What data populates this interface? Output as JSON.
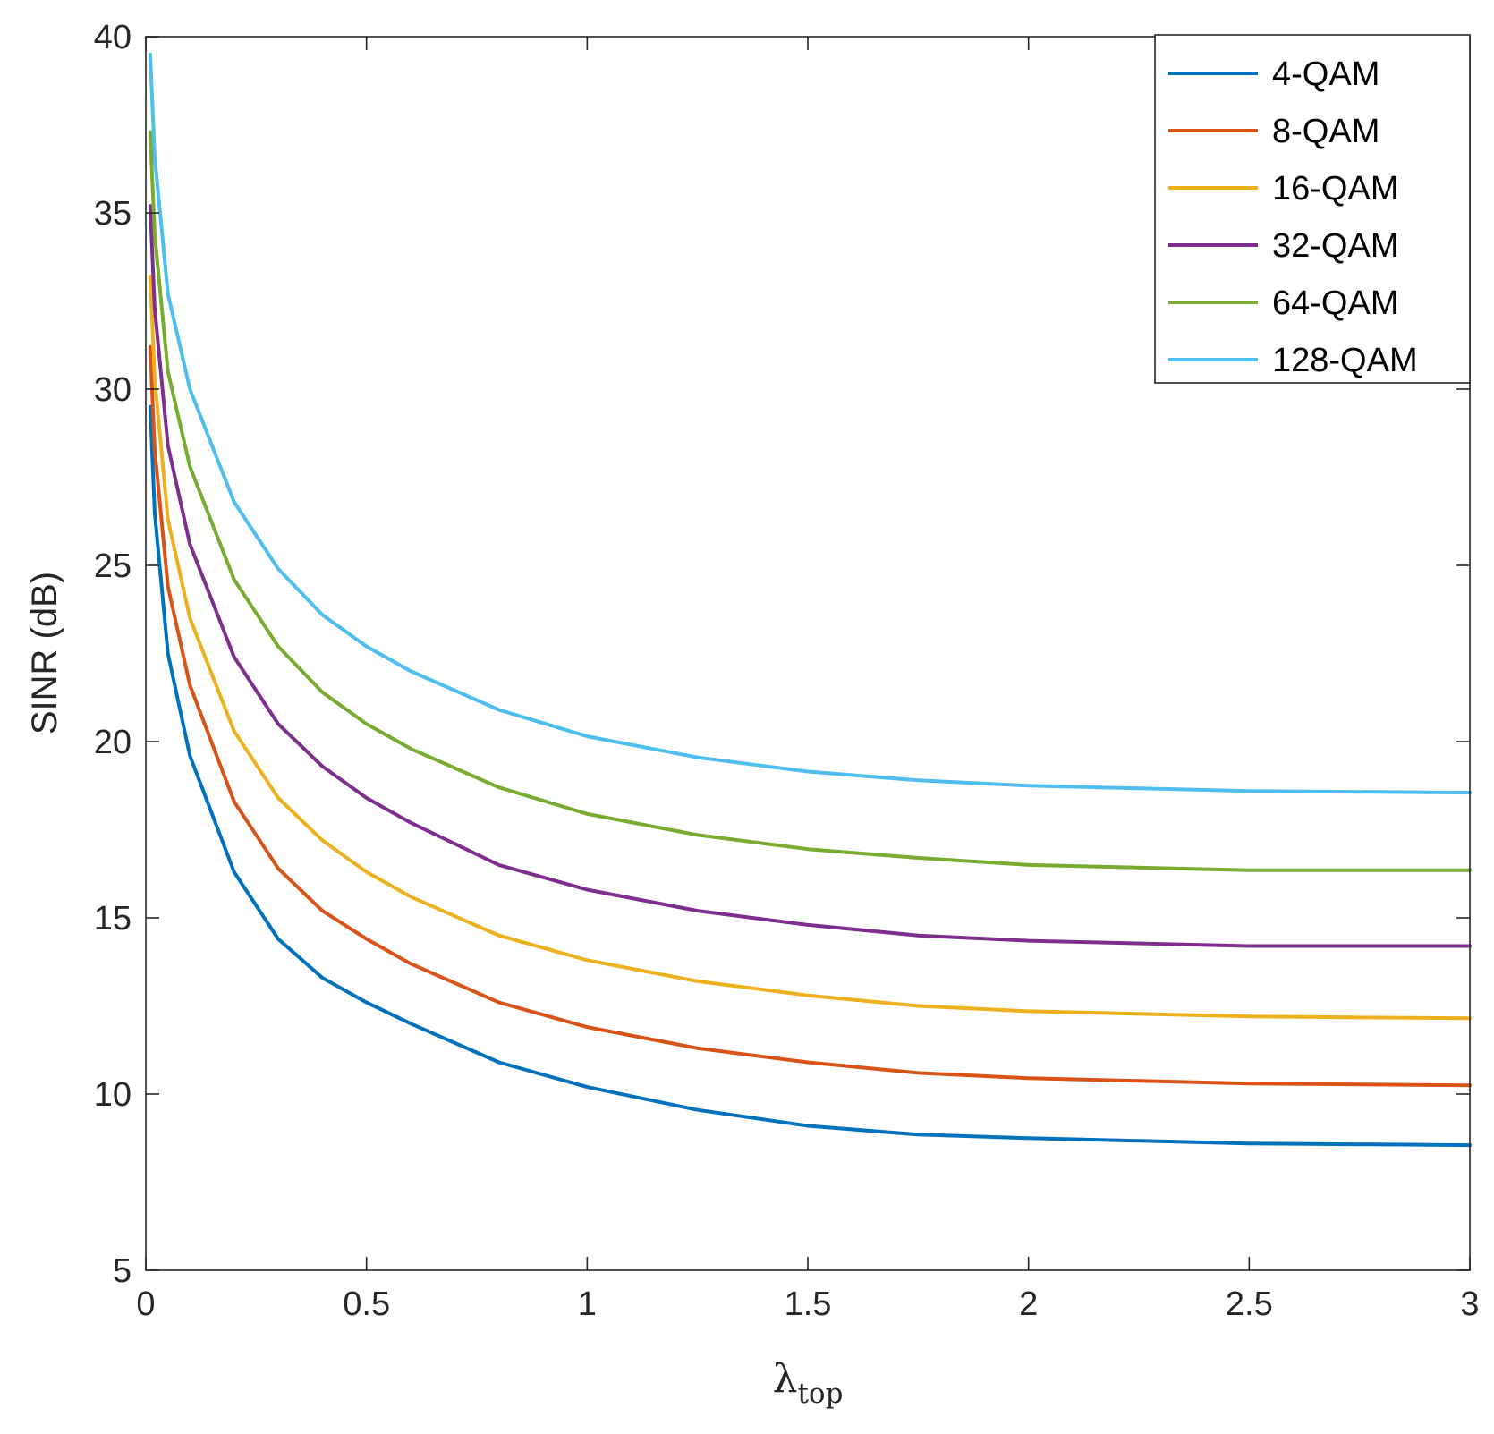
{
  "chart_data": {
    "type": "line",
    "title": "",
    "xlabel": "λ",
    "xlabel_subscript": "top",
    "ylabel": "SINR (dB)",
    "xlim": [
      0,
      3
    ],
    "ylim": [
      5,
      40
    ],
    "xticks": [
      0,
      0.5,
      1,
      1.5,
      2,
      2.5,
      3
    ],
    "xtick_labels": [
      "0",
      "0.5",
      "1",
      "1.5",
      "2",
      "2.5",
      "3"
    ],
    "yticks": [
      5,
      10,
      15,
      20,
      25,
      30,
      35,
      40
    ],
    "ytick_labels": [
      "5",
      "10",
      "15",
      "20",
      "25",
      "30",
      "35",
      "40"
    ],
    "grid": false,
    "legend_position": "top-right",
    "x": [
      0.01,
      0.02,
      0.05,
      0.1,
      0.2,
      0.3,
      0.4,
      0.5,
      0.6,
      0.8,
      1.0,
      1.25,
      1.5,
      1.75,
      2.0,
      2.5,
      3.0
    ],
    "series": [
      {
        "name": "4-QAM",
        "color": "#0072BD",
        "values": [
          29.5,
          26.5,
          22.5,
          19.6,
          16.3,
          14.4,
          13.3,
          12.6,
          12.0,
          10.9,
          10.2,
          9.55,
          9.1,
          8.85,
          8.75,
          8.6,
          8.55
        ]
      },
      {
        "name": "8-QAM",
        "color": "#D95319",
        "values": [
          31.2,
          28.3,
          24.4,
          21.6,
          18.3,
          16.4,
          15.2,
          14.4,
          13.7,
          12.6,
          11.9,
          11.3,
          10.9,
          10.6,
          10.45,
          10.3,
          10.25
        ]
      },
      {
        "name": "16-QAM",
        "color": "#EDB120",
        "values": [
          33.2,
          30.3,
          26.3,
          23.5,
          20.3,
          18.4,
          17.2,
          16.3,
          15.6,
          14.5,
          13.8,
          13.2,
          12.8,
          12.5,
          12.35,
          12.2,
          12.15
        ]
      },
      {
        "name": "32-QAM",
        "color": "#7E2F8E",
        "values": [
          35.2,
          32.3,
          28.4,
          25.6,
          22.4,
          20.5,
          19.3,
          18.4,
          17.7,
          16.5,
          15.8,
          15.2,
          14.8,
          14.5,
          14.35,
          14.2,
          14.2
        ]
      },
      {
        "name": "64-QAM",
        "color": "#77AC30",
        "values": [
          37.3,
          34.4,
          30.5,
          27.8,
          24.6,
          22.7,
          21.4,
          20.5,
          19.8,
          18.7,
          17.95,
          17.35,
          16.95,
          16.7,
          16.5,
          16.35,
          16.35
        ]
      },
      {
        "name": "128-QAM",
        "color": "#4DBEEE",
        "values": [
          39.5,
          36.6,
          32.7,
          30.0,
          26.8,
          24.9,
          23.6,
          22.7,
          22.0,
          20.9,
          20.15,
          19.55,
          19.15,
          18.9,
          18.75,
          18.6,
          18.55
        ]
      }
    ]
  }
}
